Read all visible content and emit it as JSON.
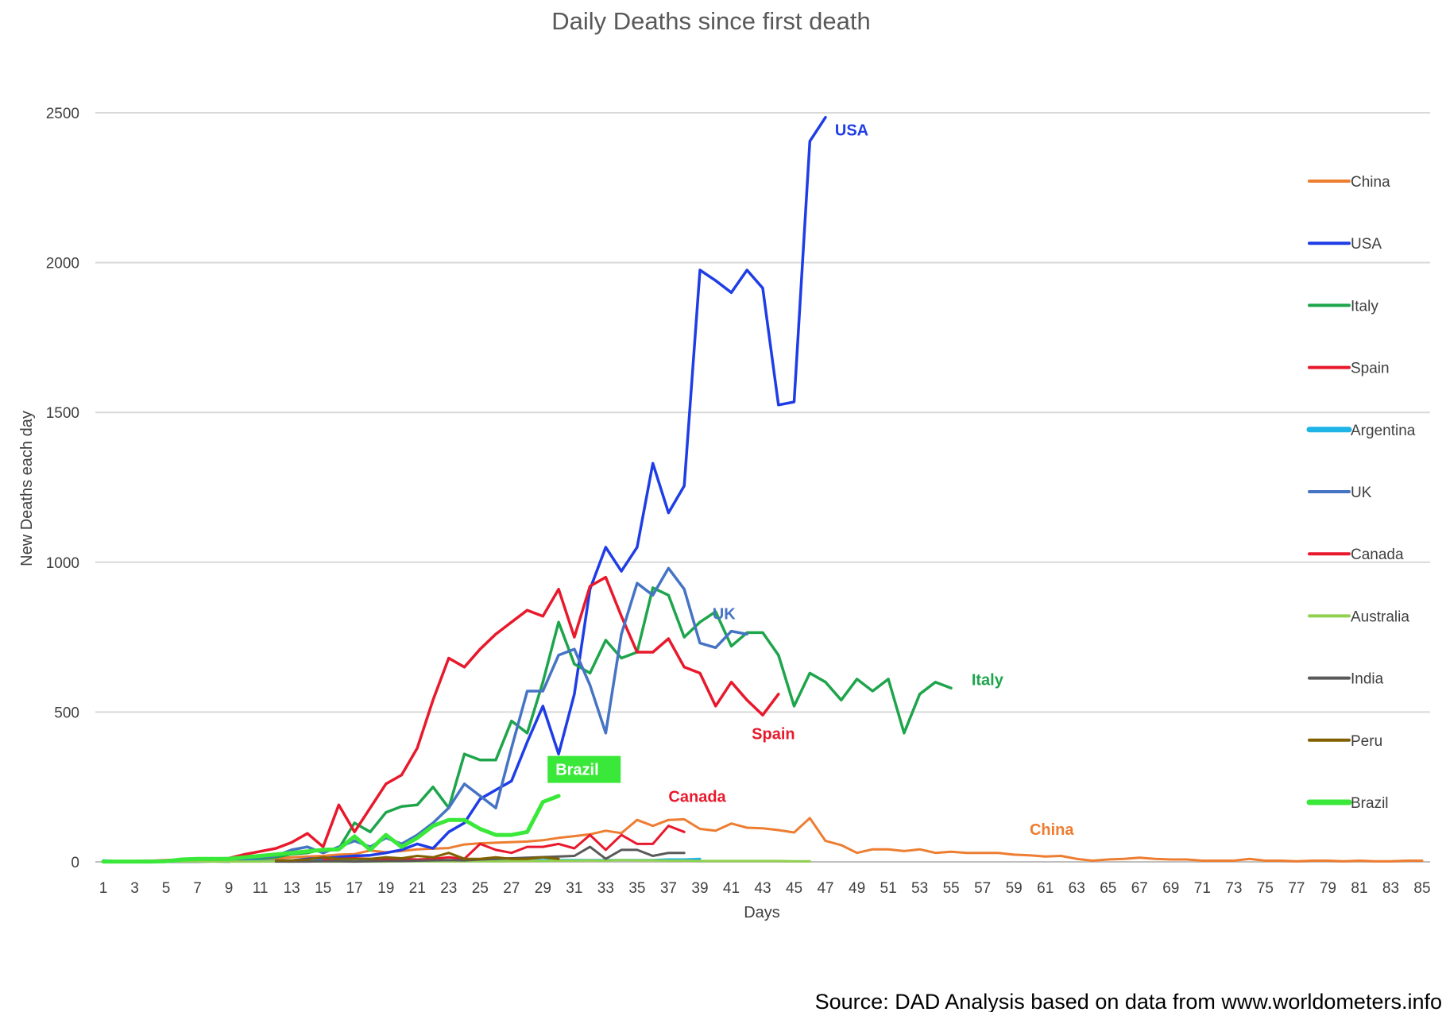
{
  "chart_data": {
    "type": "line",
    "title": "Daily Deaths since first death",
    "xlabel": "Days",
    "ylabel": "New Deaths each day",
    "xlim": [
      1,
      85
    ],
    "ylim": [
      0,
      2500
    ],
    "x_ticks": [
      1,
      3,
      5,
      7,
      9,
      11,
      13,
      15,
      17,
      19,
      21,
      23,
      25,
      27,
      29,
      31,
      33,
      35,
      37,
      39,
      41,
      43,
      45,
      47,
      49,
      51,
      53,
      55,
      57,
      59,
      61,
      63,
      65,
      67,
      69,
      71,
      73,
      75,
      77,
      79,
      81,
      83,
      85
    ],
    "y_ticks": [
      0,
      500,
      1000,
      1500,
      2000,
      2500
    ],
    "grid": "horizontal",
    "legend_position": "right",
    "series": [
      {
        "name": "China",
        "color": "#ED7D31",
        "width": 3,
        "x_start": 1,
        "values": [
          1,
          0,
          1,
          1,
          2,
          2,
          2,
          3,
          4,
          8,
          10,
          12,
          15,
          18,
          20,
          24,
          26,
          38,
          32,
          36,
          42,
          44,
          46,
          58,
          62,
          64,
          66,
          68,
          72,
          80,
          86,
          92,
          104,
          96,
          140,
          120,
          140,
          142,
          110,
          104,
          128,
          114,
          112,
          106,
          98,
          146,
          70,
          56,
          30,
          42,
          42,
          36,
          42,
          30,
          34,
          30,
          30,
          30,
          24,
          22,
          18,
          20,
          10,
          4,
          8,
          10,
          14,
          10,
          8,
          8,
          4,
          4,
          4,
          10,
          4,
          4,
          2,
          4,
          4,
          2,
          4,
          2,
          2,
          4,
          4
        ]
      },
      {
        "name": "USA",
        "color": "#1F3DE6",
        "width": 3.5,
        "x_start": 1,
        "values": [
          1,
          1,
          1,
          1,
          1,
          1,
          1,
          2,
          2,
          2,
          2,
          3,
          4,
          10,
          12,
          16,
          20,
          22,
          30,
          40,
          60,
          45,
          100,
          130,
          210,
          240,
          270,
          400,
          520,
          360,
          560,
          910,
          1050,
          970,
          1050,
          1330,
          1165,
          1255,
          1975,
          1940,
          1900,
          1975,
          1915,
          1525,
          1535,
          2405,
          2485
        ]
      },
      {
        "name": "Italy",
        "color": "#1EA54C",
        "width": 3.5,
        "x_start": 1,
        "values": [
          1,
          1,
          2,
          1,
          3,
          3,
          7,
          10,
          10,
          10,
          12,
          16,
          26,
          30,
          42,
          44,
          130,
          100,
          165,
          185,
          190,
          250,
          180,
          360,
          340,
          340,
          470,
          430,
          600,
          800,
          660,
          630,
          740,
          680,
          700,
          915,
          890,
          750,
          800,
          835,
          720,
          765,
          765,
          690,
          520,
          630,
          600,
          540,
          610,
          570,
          610,
          430,
          560,
          600,
          580
        ]
      },
      {
        "name": "Spain",
        "color": "#E8192C",
        "width": 3.5,
        "x_start": 1,
        "values": [
          1,
          1,
          2,
          3,
          5,
          8,
          10,
          10,
          12,
          25,
          35,
          45,
          65,
          95,
          50,
          190,
          100,
          180,
          260,
          290,
          380,
          540,
          680,
          650,
          710,
          760,
          800,
          840,
          820,
          910,
          750,
          920,
          950,
          820,
          700,
          700,
          745,
          650,
          630,
          520,
          600,
          540,
          490,
          560
        ]
      },
      {
        "name": "Argentina",
        "color": "#1EB4E6",
        "width": 3,
        "x_start": 1,
        "values": [
          5,
          2,
          1,
          1,
          2,
          2,
          4,
          2,
          2,
          2,
          3,
          3,
          3,
          3,
          3,
          4,
          2,
          4,
          3,
          4,
          4,
          4,
          3,
          3,
          3,
          6,
          6,
          6,
          6,
          6,
          6,
          6,
          6,
          6,
          6,
          6,
          8,
          8,
          10
        ]
      },
      {
        "name": "UK",
        "color": "#4674C4",
        "width": 3.5,
        "x_start": 1,
        "values": [
          1,
          1,
          1,
          1,
          2,
          1,
          2,
          2,
          1,
          10,
          16,
          20,
          40,
          50,
          30,
          50,
          70,
          50,
          80,
          60,
          90,
          130,
          180,
          260,
          220,
          180,
          380,
          570,
          570,
          690,
          710,
          590,
          430,
          760,
          930,
          890,
          980,
          910,
          730,
          715,
          770,
          760
        ]
      },
      {
        "name": "Canada",
        "color": "#E8192C",
        "width": 3,
        "x_start": 15,
        "values": [
          10,
          10,
          12,
          10,
          8,
          10,
          8,
          10,
          15,
          10,
          60,
          40,
          30,
          50,
          50,
          60,
          45,
          90,
          40,
          90,
          60,
          60,
          120,
          100
        ]
      },
      {
        "name": "Australia",
        "color": "#92D050",
        "width": 3,
        "x_start": 1,
        "values": [
          1,
          1,
          1,
          1,
          1,
          1,
          1,
          1,
          1,
          1,
          1,
          2,
          1,
          2,
          1,
          1,
          1,
          1,
          1,
          2,
          2,
          2,
          2,
          2,
          3,
          2,
          3,
          4,
          3,
          4,
          4,
          5,
          4,
          6,
          5,
          5,
          4,
          4,
          3,
          3,
          3,
          3,
          3,
          3,
          2,
          2
        ]
      },
      {
        "name": "India",
        "color": "#595959",
        "width": 3,
        "x_start": 12,
        "values": [
          1,
          1,
          1,
          2,
          2,
          1,
          2,
          3,
          3,
          4,
          5,
          6,
          5,
          8,
          10,
          12,
          14,
          16,
          18,
          20,
          50,
          10,
          40,
          40,
          20,
          30,
          30
        ]
      },
      {
        "name": "Peru",
        "color": "#806000",
        "width": 3,
        "x_start": 12,
        "values": [
          5,
          5,
          8,
          15,
          10,
          10,
          10,
          15,
          12,
          20,
          15,
          30,
          10,
          10,
          15,
          10,
          10,
          15,
          10
        ]
      },
      {
        "name": "Brazil",
        "color": "#3AE83A",
        "width": 5,
        "x_start": 1,
        "values": [
          1,
          1,
          1,
          1,
          2,
          8,
          10,
          10,
          10,
          15,
          20,
          25,
          30,
          35,
          40,
          42,
          85,
          40,
          90,
          50,
          80,
          120,
          140,
          140,
          110,
          90,
          90,
          100,
          200,
          220
        ]
      }
    ],
    "annotations": [
      {
        "text": "USA",
        "series": "USA",
        "color": "#1F3DE6",
        "x": 47.6,
        "y": 2425,
        "boxed": false
      },
      {
        "text": "UK",
        "series": "UK",
        "color": "#4674C4",
        "x": 39.8,
        "y": 810,
        "boxed": false
      },
      {
        "text": "Italy",
        "series": "Italy",
        "color": "#1EA54C",
        "x": 56.3,
        "y": 590,
        "boxed": false
      },
      {
        "text": "Spain",
        "series": "Spain",
        "color": "#E8192C",
        "x": 42.3,
        "y": 410,
        "boxed": false
      },
      {
        "text": "Brazil",
        "series": "Brazil",
        "color": "#FFFFFF",
        "bg": "#3AE83A",
        "x": 29.5,
        "y": 290,
        "boxed": true
      },
      {
        "text": "Canada",
        "series": "Canada",
        "color": "#E8192C",
        "x": 37.0,
        "y": 200,
        "boxed": false
      },
      {
        "text": "China",
        "series": "China",
        "color": "#ED7D31",
        "x": 60.0,
        "y": 90,
        "boxed": false
      }
    ]
  },
  "source_text": "Source: DAD Analysis based on data from www.worldometers.info"
}
